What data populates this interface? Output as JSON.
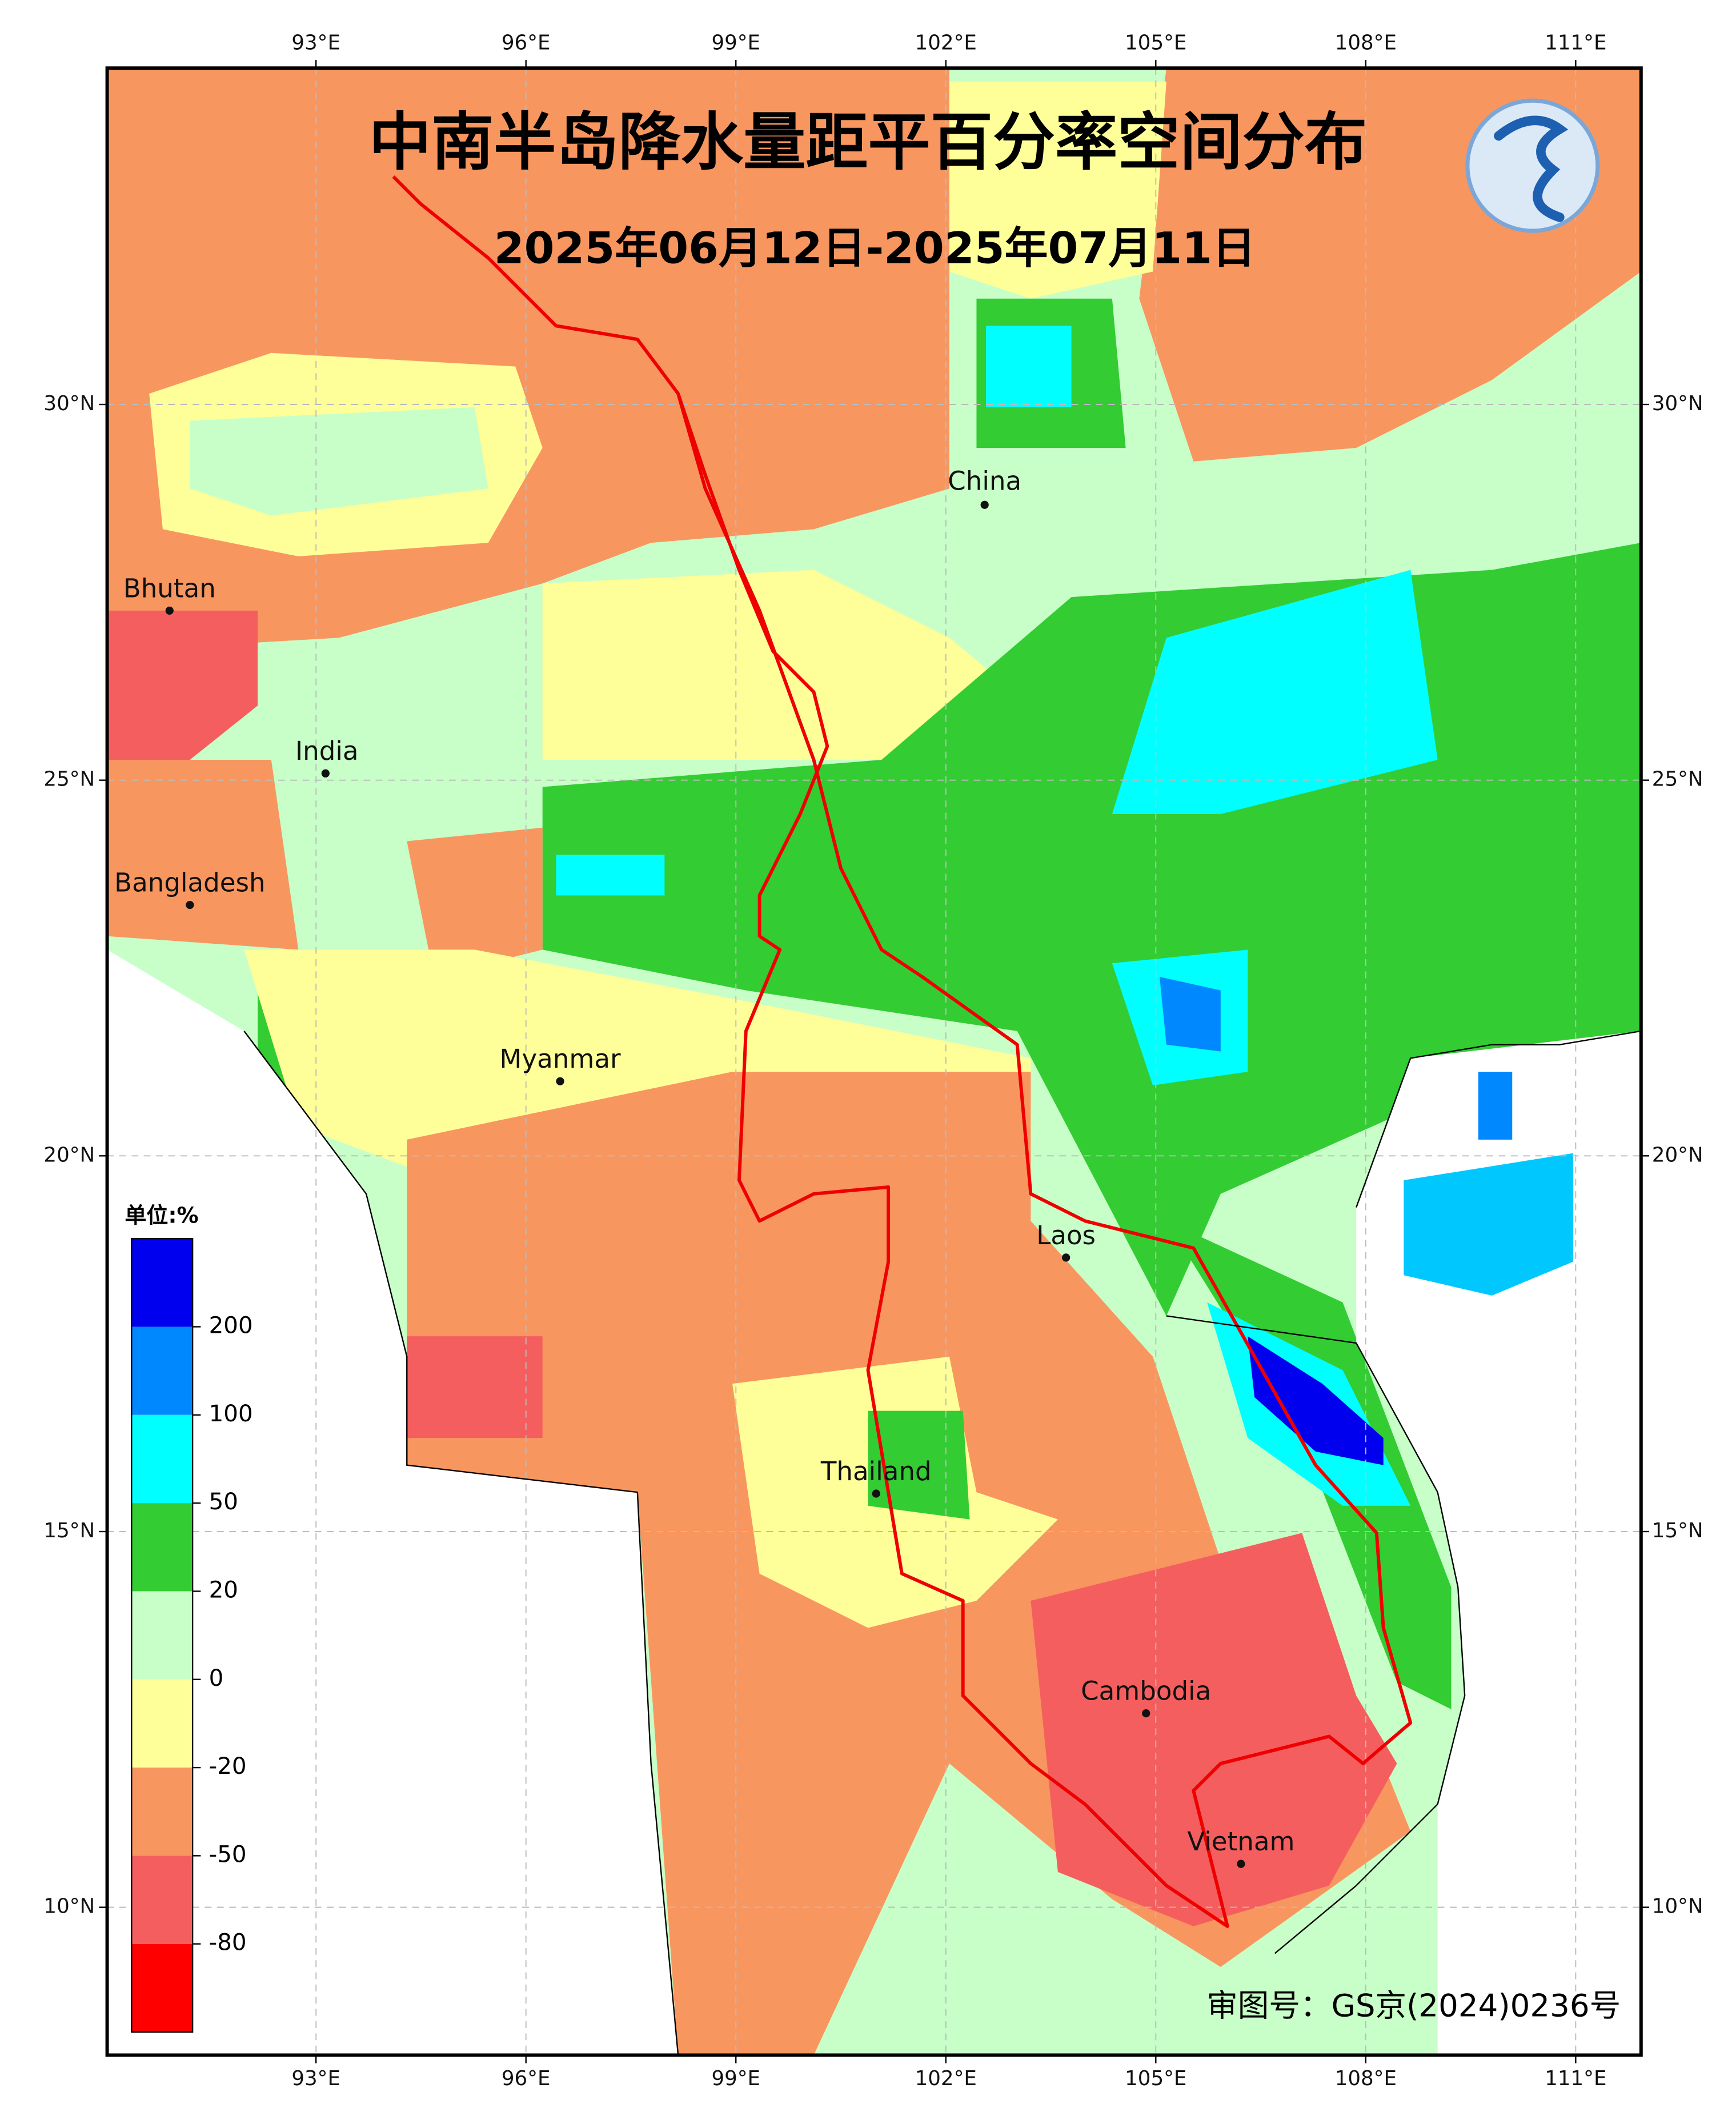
{
  "title": "中南半岛降水量距平百分率空间分布",
  "subtitle": "2025年06月12日-2025年07月11日",
  "map": {
    "xticks": [
      {
        "value": 93,
        "label": "93°E"
      },
      {
        "value": 96,
        "label": "96°E"
      },
      {
        "value": 99,
        "label": "99°E"
      },
      {
        "value": 102,
        "label": "102°E"
      },
      {
        "value": 105,
        "label": "105°E"
      },
      {
        "value": 108,
        "label": "108°E"
      },
      {
        "value": 111,
        "label": "111°E"
      }
    ],
    "yticks": [
      {
        "value": 30,
        "label": "30°N"
      },
      {
        "value": 25,
        "label": "25°N"
      },
      {
        "value": 20,
        "label": "20°N"
      },
      {
        "value": 15,
        "label": "15°N"
      },
      {
        "value": 10,
        "label": "10°N"
      }
    ],
    "places": [
      "China",
      "Bhutan",
      "India",
      "Bangladesh",
      "Myanmar",
      "Laos",
      "Thailand",
      "Cambodia",
      "Vietnam"
    ]
  },
  "legend": {
    "title": "单位:%",
    "levels": [
      200,
      100,
      50,
      20,
      0,
      -20,
      -50,
      -80
    ],
    "colors": [
      "#0000ee",
      "#0088ff",
      "#00ffff",
      "#33cc33",
      "#c8ffc8",
      "#ffff99",
      "#f89660",
      "#f55e5e",
      "#ff0000"
    ]
  },
  "footer": "审图号：GS京(2024)0236号"
}
